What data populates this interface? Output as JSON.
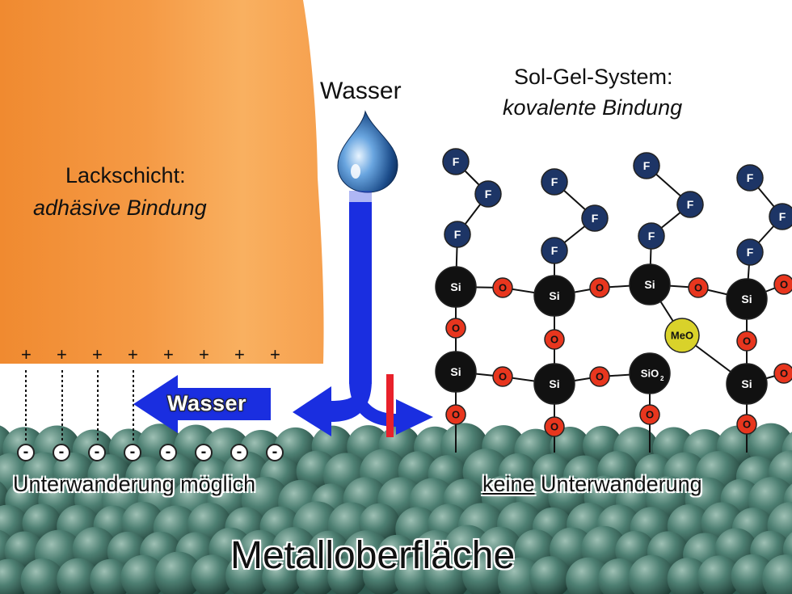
{
  "paint_layer": {
    "title": "Lackschicht:",
    "subtitle": "adhäsive Bindung",
    "charge_positive": "+",
    "charge_negative": "-"
  },
  "water_top_label": "Wasser",
  "water_arrow_label": "Wasser",
  "sol_gel": {
    "title": "Sol-Gel-System:",
    "subtitle": "kovalente Bindung",
    "atom_labels": {
      "fluorine": "F",
      "silicon": "Si",
      "oxygen": "O",
      "metal_oxide": "MeO",
      "silica": "SiO",
      "silica_subscript": "2"
    }
  },
  "undermining_possible": "Unterwanderung möglich",
  "no_undermining_emphasis": "keine",
  "no_undermining_rest": " Unterwanderung",
  "surface_label": "Metalloberfläche",
  "colors": {
    "paint": "#f08a30",
    "water_arrow": "#1a2ee0",
    "barrier": "#e8212a",
    "fluorine": "#1d3566",
    "silicon": "#111111",
    "oxygen": "#e8361e",
    "metal_oxide": "#d9d22a",
    "metal_surface": "#3f6e62"
  }
}
